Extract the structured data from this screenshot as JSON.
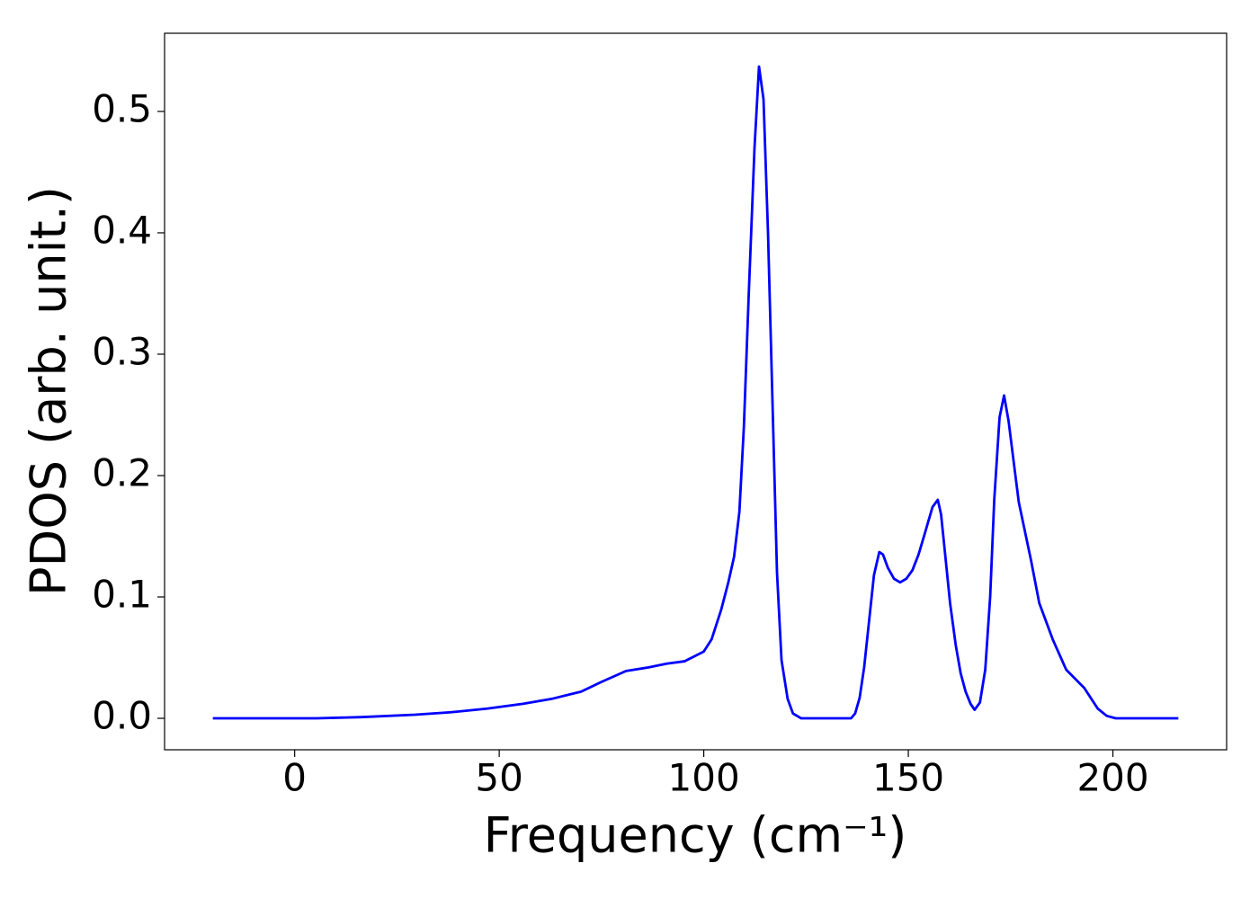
{
  "chart_data": {
    "type": "line",
    "xlabel": "Frequency (cm⁻¹)",
    "ylabel": "PDOS (arb. unit.)",
    "x": [
      -20,
      5.3,
      16.2,
      29.4,
      38.2,
      47,
      55.8,
      62.8,
      70,
      75,
      81,
      86.5,
      90.9,
      95.3,
      100,
      101.9,
      104.3,
      106,
      107.4,
      108.7,
      109.8,
      111,
      112.4,
      113.5,
      114.6,
      115.7,
      117.9,
      119,
      120.5,
      121.8,
      123.8,
      136,
      137,
      138.1,
      139.2,
      140.4,
      141.6,
      142.9,
      143.8,
      145,
      146.5,
      148,
      149.5,
      151,
      152.5,
      154,
      155.9,
      157.2,
      158,
      159,
      160.2,
      161.6,
      162.8,
      164,
      165.2,
      166.2,
      167.5,
      168.8,
      170,
      171,
      172.3,
      173.4,
      174.5,
      175.8,
      177,
      180,
      182,
      185.3,
      188.6,
      193,
      196.3,
      198.5,
      200.7,
      216
    ],
    "values": [
      0,
      0,
      0.001,
      0.003,
      0.005,
      0.008,
      0.012,
      0.016,
      0.022,
      0.03,
      0.039,
      0.042,
      0.045,
      0.047,
      0.055,
      0.065,
      0.09,
      0.112,
      0.133,
      0.17,
      0.24,
      0.35,
      0.47,
      0.537,
      0.51,
      0.4,
      0.12,
      0.048,
      0.016,
      0.004,
      0,
      0,
      0.004,
      0.017,
      0.042,
      0.08,
      0.118,
      0.137,
      0.135,
      0.124,
      0.115,
      0.112,
      0.115,
      0.122,
      0.135,
      0.152,
      0.174,
      0.18,
      0.168,
      0.135,
      0.095,
      0.06,
      0.037,
      0.022,
      0.012,
      0.007,
      0.013,
      0.04,
      0.1,
      0.18,
      0.248,
      0.266,
      0.245,
      0.21,
      0.178,
      0.13,
      0.095,
      0.065,
      0.04,
      0.025,
      0.008,
      0.002,
      0,
      0
    ],
    "color": "#0000ff",
    "xlim": [
      -31.8,
      227.8
    ],
    "ylim": [
      -0.0259,
      0.5644
    ],
    "xticks": [
      0,
      50,
      100,
      150,
      200
    ],
    "yticks": [
      {
        "value": 0,
        "label": "0.0"
      },
      0.1,
      0.2,
      0.3,
      0.4,
      0.5
    ]
  }
}
